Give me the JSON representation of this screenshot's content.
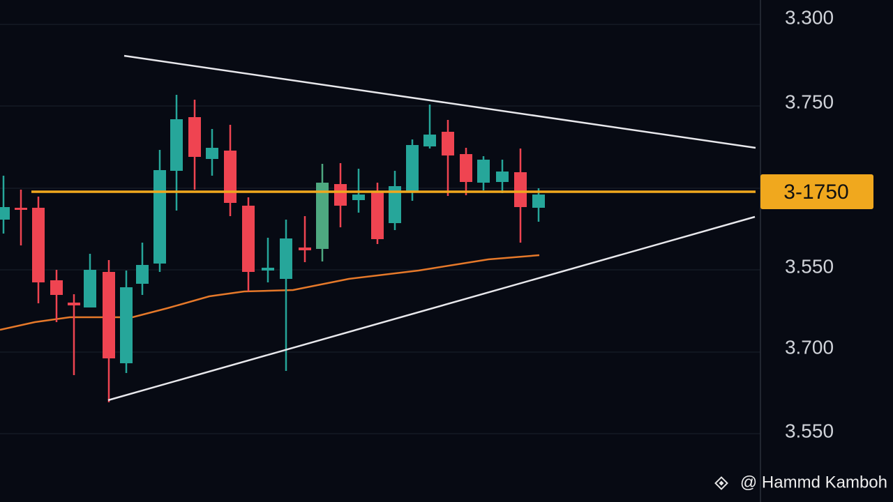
{
  "axis_labels": [
    "3.300",
    "3.750",
    "3.550",
    "3.700",
    "3.550"
  ],
  "price_tag": "3-1750",
  "watermark": "@ Hammd Kamboh"
}
